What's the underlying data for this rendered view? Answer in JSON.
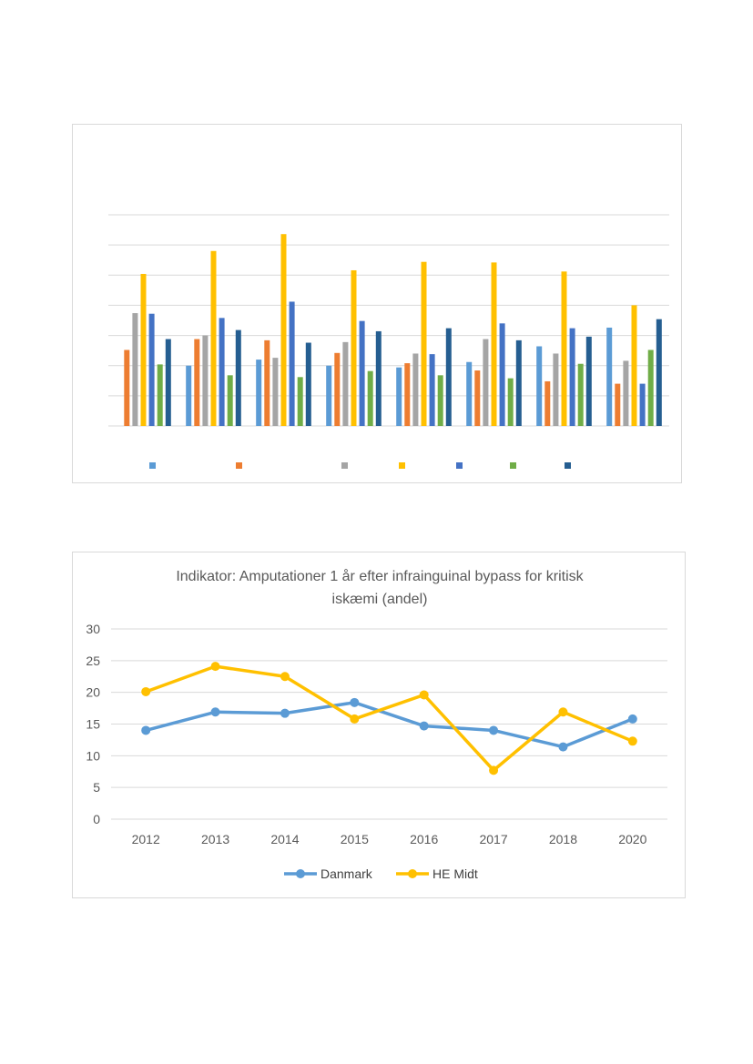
{
  "bar_chart": {
    "title": "",
    "chart_data": {
      "type": "bar",
      "categories": [
        "",
        "",
        "",
        "",
        "",
        "",
        "",
        ""
      ],
      "ylim": [
        0,
        35
      ],
      "grid": true,
      "legend_position": "bottom",
      "series": [
        {
          "name": "",
          "color": "#5b9bd5",
          "values": [
            0,
            10,
            11,
            10,
            9.7,
            10.6,
            13.2,
            16.3
          ]
        },
        {
          "name": "",
          "color": "#ed7d31",
          "values": [
            12.6,
            14.4,
            14.2,
            12.1,
            10.4,
            9.2,
            7.4,
            7.0
          ]
        },
        {
          "name": "",
          "color": "#a5a5a5",
          "values": [
            18.7,
            15.0,
            11.3,
            13.9,
            12.0,
            14.4,
            12.0,
            10.8
          ]
        },
        {
          "name": "",
          "color": "#ffc000",
          "values": [
            25.2,
            29.0,
            31.8,
            25.8,
            27.2,
            27.1,
            25.6,
            20.0
          ]
        },
        {
          "name": "",
          "color": "#4472c4",
          "values": [
            18.6,
            17.9,
            20.6,
            17.4,
            11.9,
            17.0,
            16.2,
            7.0
          ]
        },
        {
          "name": "",
          "color": "#70ad47",
          "values": [
            10.2,
            8.4,
            8.1,
            9.1,
            8.4,
            7.9,
            10.3,
            12.6
          ]
        },
        {
          "name": "",
          "color": "#255e91",
          "values": [
            14.4,
            15.9,
            13.8,
            15.7,
            16.2,
            14.2,
            14.8,
            17.7
          ]
        }
      ]
    }
  },
  "line_chart": {
    "title_line1": "Indikator: Amputationer 1 år efter infrainguinal bypass for kritisk",
    "title_line2": "iskæmi  (andel)",
    "chart_data": {
      "type": "line",
      "title": "Indikator: Amputationer 1 år efter infrainguinal bypass for kritisk iskæmi  (andel)",
      "x": [
        "2012",
        "2013",
        "2014",
        "2015",
        "2016",
        "2017",
        "2018",
        "2020"
      ],
      "ylim": [
        0,
        30
      ],
      "yticks": [
        "0",
        "5",
        "10",
        "15",
        "20",
        "25",
        "30"
      ],
      "grid": true,
      "legend_position": "bottom",
      "series": [
        {
          "name": "Danmark",
          "color": "#5b9bd5",
          "values": [
            14.0,
            16.9,
            16.7,
            18.4,
            14.7,
            14.0,
            11.4,
            15.8
          ]
        },
        {
          "name": "HE Midt",
          "color": "#ffc000",
          "values": [
            20.1,
            24.1,
            22.5,
            15.8,
            19.6,
            7.7,
            16.9,
            12.3
          ]
        }
      ]
    }
  }
}
